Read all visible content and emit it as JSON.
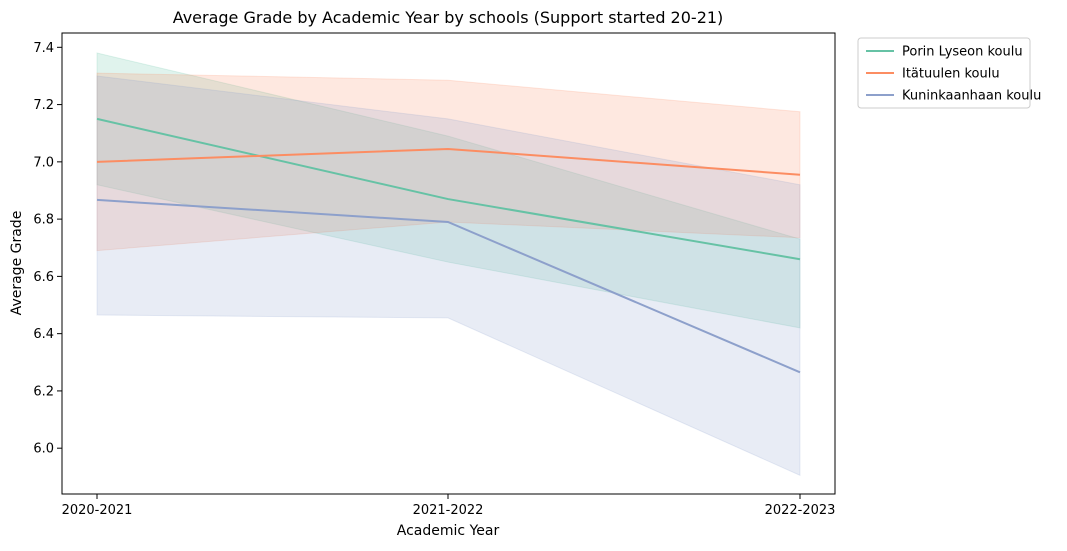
{
  "chart_data": {
    "type": "line",
    "title": "Average Grade by Academic Year by schools (Support started 20-21)",
    "xlabel": "Academic Year",
    "ylabel": "Average Grade",
    "categories": [
      "2020-2021",
      "2021-2022",
      "2022-2023"
    ],
    "ylim": [
      5.84,
      7.45
    ],
    "yticks": [
      "6.0",
      "6.2",
      "6.4",
      "6.6",
      "6.8",
      "7.0",
      "7.2",
      "7.4"
    ],
    "grid": false,
    "legend_position": "outside-top-right",
    "series": [
      {
        "name": "Porin Lyseon koulu",
        "color": "#66c2a5",
        "values": [
          7.15,
          6.87,
          6.66
        ],
        "ci_lower": [
          6.92,
          6.65,
          6.42
        ],
        "ci_upper": [
          7.38,
          7.09,
          6.73
        ]
      },
      {
        "name": "Itätuulen koulu",
        "color": "#fc8d62",
        "values": [
          7.0,
          7.045,
          6.955
        ],
        "ci_lower": [
          6.69,
          6.79,
          6.735
        ],
        "ci_upper": [
          7.31,
          7.285,
          7.175
        ]
      },
      {
        "name": "Kuninkaanhaan koulu",
        "color": "#8da0cb",
        "values": [
          6.867,
          6.79,
          6.265
        ],
        "ci_lower": [
          6.465,
          6.455,
          5.905
        ],
        "ci_upper": [
          7.3,
          7.15,
          6.92
        ]
      }
    ]
  }
}
